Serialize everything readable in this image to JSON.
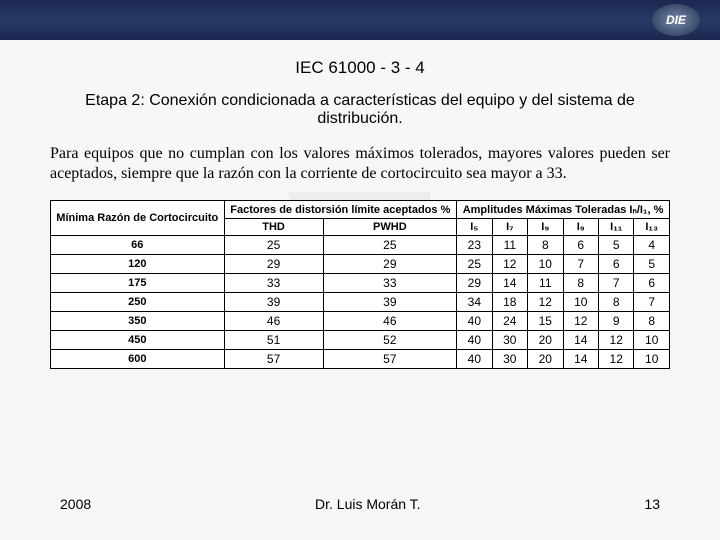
{
  "logo_text": "DIE",
  "heading1": "IEC 61000 - 3 - 4",
  "heading2": "Etapa 2: Conexión condicionada a características del equipo y del sistema de distribución.",
  "paragraph": "Para equipos que no cumplan con los valores máximos tolerados, mayores valores pueden ser aceptados, siempre que la razón con la corriente de cortocircuito sea mayor a 33.",
  "table": {
    "header_group1": "Mínima Razón de Cortocircuito",
    "header_group2": "Factores de distorsión límite aceptados %",
    "header_group3": "Amplitudes Máximas Toleradas Iₙ/I₁, %",
    "sub_thd": "THD",
    "sub_pwhd": "PWHD",
    "sub_i5": "I₅",
    "sub_i7": "I₇",
    "sub_i9": "I₉",
    "sub_i9b": "I₉",
    "sub_i11": "I₁₁",
    "sub_i13": "I₁₃",
    "rows": [
      {
        "r": "66",
        "thd": "25",
        "pwhd": "25",
        "i5": "23",
        "i7": "11",
        "i9a": "8",
        "i9b": "6",
        "i11": "5",
        "i13": "4"
      },
      {
        "r": "120",
        "thd": "29",
        "pwhd": "29",
        "i5": "25",
        "i7": "12",
        "i9a": "10",
        "i9b": "7",
        "i11": "6",
        "i13": "5"
      },
      {
        "r": "175",
        "thd": "33",
        "pwhd": "33",
        "i5": "29",
        "i7": "14",
        "i9a": "11",
        "i9b": "8",
        "i11": "7",
        "i13": "6"
      },
      {
        "r": "250",
        "thd": "39",
        "pwhd": "39",
        "i5": "34",
        "i7": "18",
        "i9a": "12",
        "i9b": "10",
        "i11": "8",
        "i13": "7"
      },
      {
        "r": "350",
        "thd": "46",
        "pwhd": "46",
        "i5": "40",
        "i7": "24",
        "i9a": "15",
        "i9b": "12",
        "i11": "9",
        "i13": "8"
      },
      {
        "r": "450",
        "thd": "51",
        "pwhd": "52",
        "i5": "40",
        "i7": "30",
        "i9a": "20",
        "i9b": "14",
        "i11": "12",
        "i13": "10"
      },
      {
        "r": "600",
        "thd": "57",
        "pwhd": "57",
        "i5": "40",
        "i7": "30",
        "i9a": "20",
        "i9b": "14",
        "i11": "12",
        "i13": "10"
      }
    ]
  },
  "footer": {
    "year": "2008",
    "author": "Dr. Luis Morán T.",
    "page": "13"
  },
  "colors": {
    "topbar_grad_top": "#1a2850",
    "topbar_grad_mid": "#2a3a65",
    "bg": "#f7f7f5",
    "border": "#000000"
  }
}
